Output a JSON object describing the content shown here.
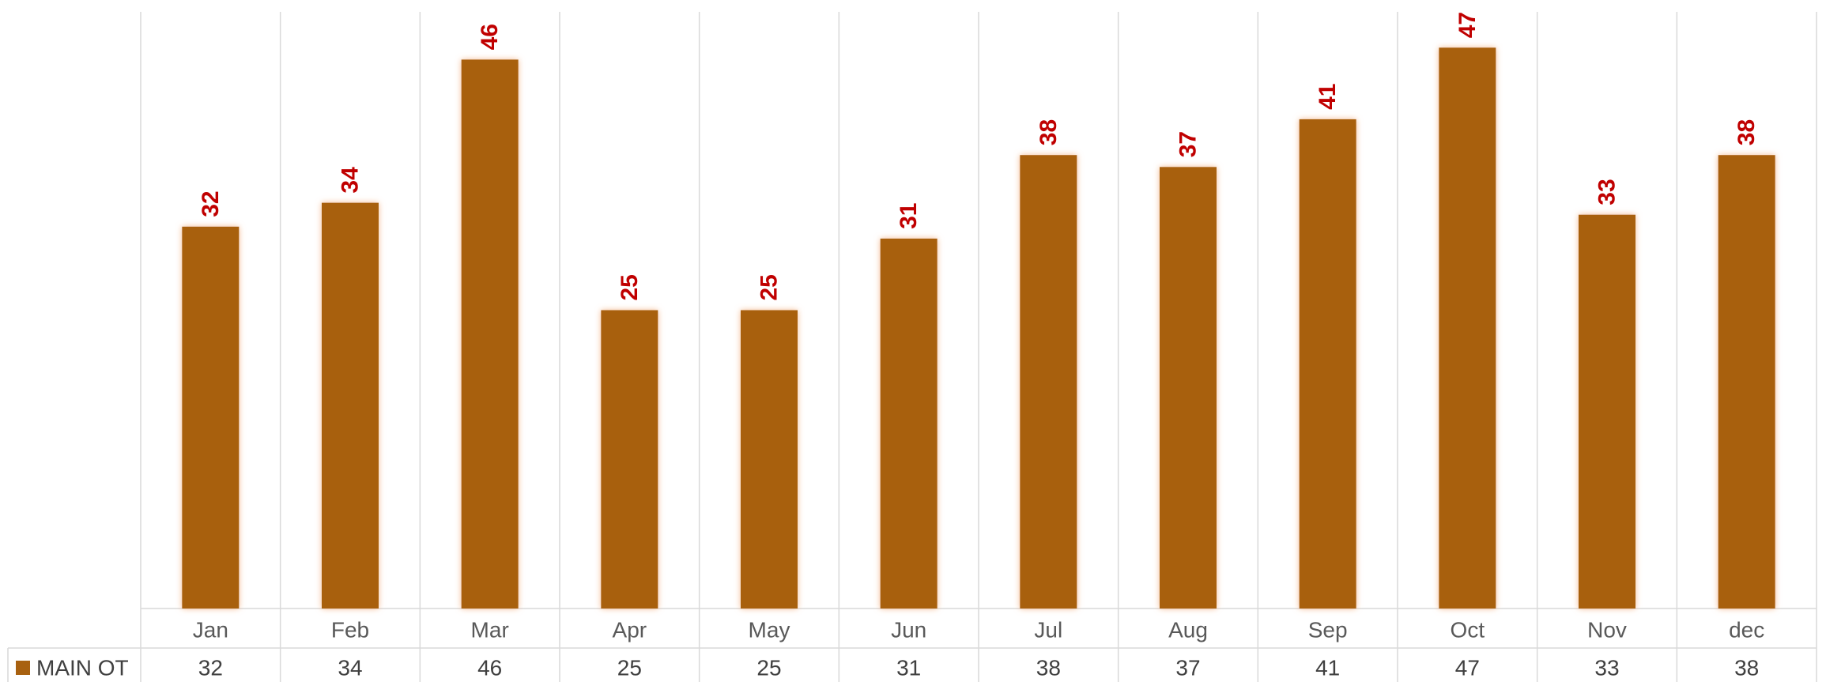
{
  "chart_data": {
    "type": "bar",
    "categories": [
      "Jan",
      "Feb",
      "Mar",
      "Apr",
      "May",
      "Jun",
      "Jul",
      "Aug",
      "Sep",
      "Oct",
      "Nov",
      "dec"
    ],
    "series": [
      {
        "name": "MAIN OT",
        "values": [
          32,
          34,
          46,
          25,
          25,
          31,
          38,
          37,
          41,
          47,
          33,
          38
        ],
        "color": "#a86110"
      }
    ],
    "data_label_color": "#c00000",
    "glow_color": "#f4b183",
    "ylim": [
      0,
      50
    ],
    "grid": "vertical",
    "data_table": true
  }
}
